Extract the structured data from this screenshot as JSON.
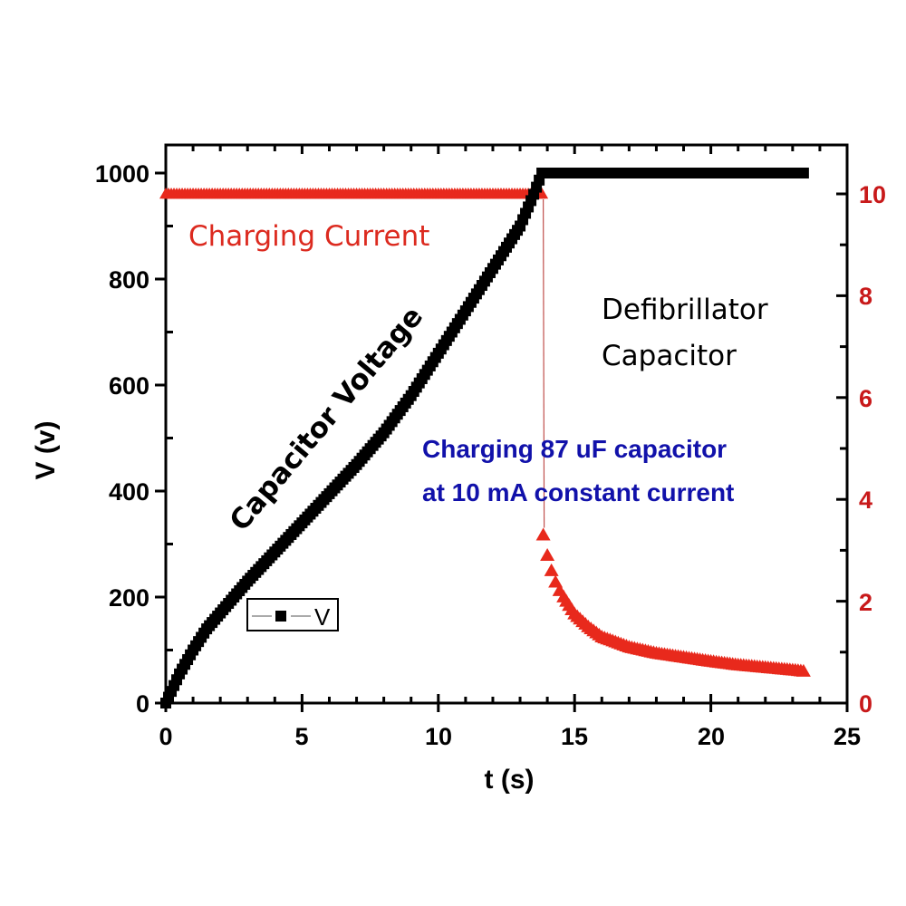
{
  "chart_data": {
    "type": "line",
    "title": "",
    "xlabel": "t (s)",
    "ylabel": "V (v)",
    "y2label": "",
    "xlim": [
      0,
      25
    ],
    "ylim": [
      0,
      1000
    ],
    "y2lim": [
      0,
      10
    ],
    "x_ticks": [
      0,
      5,
      10,
      15,
      20,
      25
    ],
    "y_ticks": [
      0,
      200,
      400,
      600,
      800,
      1000
    ],
    "y2_ticks": [
      0,
      2,
      4,
      6,
      8,
      10
    ],
    "grid": false,
    "legend": {
      "position": "lower-left-inside",
      "entries": [
        "V"
      ]
    },
    "series": [
      {
        "name": "V",
        "axis": "left",
        "marker": "square",
        "color": "#000000",
        "x": [
          0,
          0.5,
          1,
          1.5,
          2,
          2.5,
          3,
          4,
          5,
          6,
          7,
          8,
          9,
          10,
          11,
          12,
          13,
          13.5,
          13.8,
          14,
          15,
          16,
          17,
          18,
          19,
          20,
          21,
          22,
          23,
          23.5
        ],
        "values": [
          0,
          55,
          100,
          140,
          170,
          200,
          230,
          285,
          340,
          395,
          450,
          510,
          580,
          660,
          740,
          820,
          900,
          960,
          1000,
          1000,
          1000,
          1000,
          1000,
          1000,
          1000,
          1000,
          1000,
          1000,
          1000,
          1000
        ]
      },
      {
        "name": "Charging Current",
        "axis": "right",
        "unit": "mA",
        "marker": "triangle",
        "color": "#e8291c",
        "x": [
          0,
          2,
          4,
          6,
          8,
          10,
          12,
          13.8,
          13.85,
          14.0,
          14.2,
          14.4,
          14.7,
          15,
          15.5,
          16,
          17,
          18,
          19,
          20,
          21,
          22,
          23,
          23.5
        ],
        "values": [
          10,
          10,
          10,
          10,
          10,
          10,
          10,
          10,
          3.3,
          2.9,
          2.5,
          2.25,
          2.0,
          1.75,
          1.5,
          1.3,
          1.1,
          0.98,
          0.9,
          0.82,
          0.75,
          0.7,
          0.65,
          0.62
        ]
      }
    ],
    "annotations": [
      {
        "text": "Charging Current",
        "color": "#dc2a1f"
      },
      {
        "text": "Capacitor Voltage",
        "color": "#000000",
        "rotation": -50
      },
      {
        "text": "Defibrillator",
        "color": "#000000"
      },
      {
        "text": "Capacitor",
        "color": "#000000"
      },
      {
        "text": "Charging 87 uF capacitor",
        "color": "#1111aa"
      },
      {
        "text": "at 10 mA constant current",
        "color": "#1111aa"
      }
    ]
  },
  "labels": {
    "xlabel": "t (s)",
    "ylabel": "V (v)",
    "legend_v": "V",
    "x_ticks": [
      "0",
      "5",
      "10",
      "15",
      "20",
      "25"
    ],
    "y_ticks": [
      "0",
      "200",
      "400",
      "600",
      "800",
      "1000"
    ],
    "y2_ticks": [
      "0",
      "2",
      "4",
      "6",
      "8",
      "10"
    ],
    "annot_current": "Charging Current",
    "annot_voltage": "Capacitor Voltage",
    "annot_defib_1": "Defibrillator",
    "annot_defib_2": "Capacitor",
    "annot_blue_1": "Charging 87 uF capacitor",
    "annot_blue_2": "at 10 mA constant current"
  },
  "colors": {
    "voltage": "#000000",
    "current": "#e8291c",
    "current_axis": "#c8191a",
    "annot_blue": "#1111aa"
  }
}
